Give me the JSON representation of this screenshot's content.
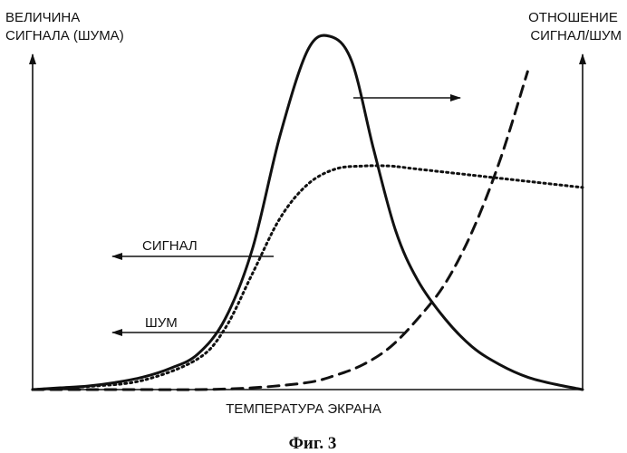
{
  "chart_data": {
    "type": "line",
    "ylabel_left": [
      "ВЕЛИЧИНА",
      "СИГНАЛА (ШУМА)"
    ],
    "ylabel_right": [
      "ОТНОШЕНИЕ",
      "СИГНАЛ/ШУМ"
    ],
    "xlabel": "ТЕМПЕРАТУРА ЭКРАНА",
    "caption": "Фиг. 3",
    "series": [
      {
        "name": "СИГНАЛ",
        "axis": "left",
        "style": "solid",
        "values": [
          [
            0.0,
            0.0
          ],
          [
            0.05,
            0.005
          ],
          [
            0.1,
            0.01
          ],
          [
            0.15,
            0.02
          ],
          [
            0.2,
            0.035
          ],
          [
            0.25,
            0.06
          ],
          [
            0.3,
            0.1
          ],
          [
            0.35,
            0.2
          ],
          [
            0.4,
            0.4
          ],
          [
            0.45,
            0.72
          ],
          [
            0.5,
            0.96
          ],
          [
            0.54,
            1.0
          ],
          [
            0.58,
            0.93
          ],
          [
            0.62,
            0.68
          ],
          [
            0.66,
            0.45
          ],
          [
            0.7,
            0.31
          ],
          [
            0.75,
            0.2
          ],
          [
            0.8,
            0.12
          ],
          [
            0.85,
            0.07
          ],
          [
            0.9,
            0.035
          ],
          [
            0.95,
            0.015
          ],
          [
            1.0,
            0.0
          ]
        ]
      },
      {
        "name": "ШУМ",
        "axis": "left",
        "style": "dashed",
        "values": [
          [
            0.0,
            0.0
          ],
          [
            0.1,
            0.0
          ],
          [
            0.2,
            0.0
          ],
          [
            0.3,
            0.0
          ],
          [
            0.4,
            0.005
          ],
          [
            0.5,
            0.02
          ],
          [
            0.55,
            0.04
          ],
          [
            0.6,
            0.07
          ],
          [
            0.65,
            0.12
          ],
          [
            0.7,
            0.2
          ],
          [
            0.75,
            0.3
          ],
          [
            0.8,
            0.45
          ],
          [
            0.85,
            0.65
          ],
          [
            0.9,
            0.9
          ]
        ]
      },
      {
        "axis": "right",
        "style": "dotted",
        "values": [
          [
            0.0,
            0.0
          ],
          [
            0.1,
            0.01
          ],
          [
            0.2,
            0.03
          ],
          [
            0.3,
            0.1
          ],
          [
            0.35,
            0.2
          ],
          [
            0.4,
            0.38
          ],
          [
            0.45,
            0.56
          ],
          [
            0.5,
            0.67
          ],
          [
            0.55,
            0.72
          ],
          [
            0.6,
            0.73
          ],
          [
            0.65,
            0.73
          ],
          [
            0.7,
            0.72
          ],
          [
            0.8,
            0.7
          ],
          [
            0.9,
            0.68
          ],
          [
            1.0,
            0.66
          ]
        ]
      }
    ],
    "annotations": [
      "СИГНАЛ",
      "ШУМ"
    ],
    "grid": false,
    "legend": "none"
  }
}
